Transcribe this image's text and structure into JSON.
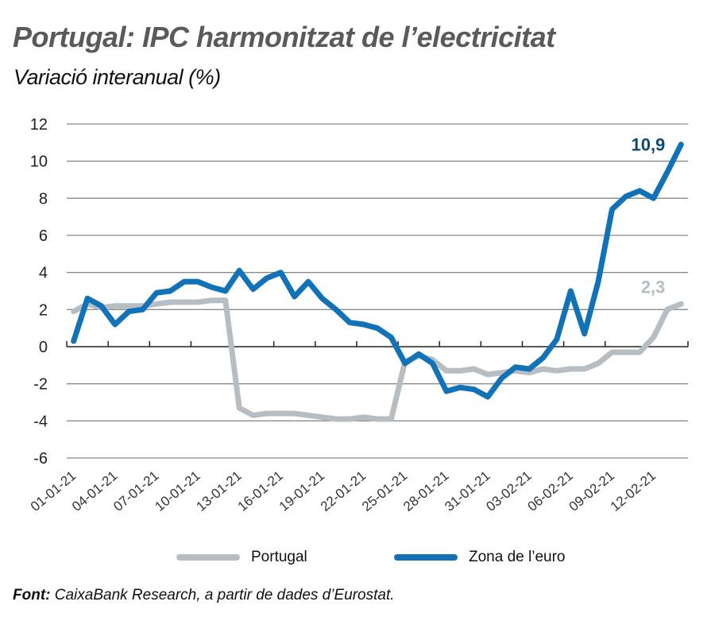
{
  "title": "Portugal: IPC harmonitzat de l’electricitat",
  "subtitle": "Variació interanual (%)",
  "source_label": "Font:",
  "source_text": " CaixaBank Research, a partir de dades d’Eurostat.",
  "colors": {
    "portugal": "#b6bec3",
    "euro": "#1172b8",
    "euro_label": "#0d4a73",
    "grid": "#8a8a8a",
    "axis": "#222222"
  },
  "chart_data": {
    "type": "line",
    "title": "Portugal: IPC harmonitzat de l’electricitat",
    "subtitle": "Variació interanual (%)",
    "xlabel": "",
    "ylabel": "",
    "ylim": [
      -6,
      12
    ],
    "yticks": [
      "12",
      "10",
      "8",
      "6",
      "4",
      "2",
      "0",
      "-2",
      "-4",
      "-6"
    ],
    "ytick_values": [
      12,
      10,
      8,
      6,
      4,
      2,
      0,
      -2,
      -4,
      -6
    ],
    "xtick_labels": [
      "01-01-21",
      "04-01-21",
      "07-01-21",
      "10-01-21",
      "13-01-21",
      "16-01-21",
      "19-01-21",
      "22-01-21",
      "25-01-21",
      "28-01-21",
      "31-01-21",
      "03-02-21",
      "06-02-21",
      "09-02-21",
      "12-02-21"
    ],
    "xtick_step": 3,
    "grid": true,
    "legend_position": "bottom",
    "series": [
      {
        "name": "Portugal",
        "key": "portugal",
        "values": [
          1.9,
          2.3,
          2.1,
          2.2,
          2.2,
          2.2,
          2.3,
          2.4,
          2.4,
          2.4,
          2.5,
          2.5,
          -3.3,
          -3.7,
          -3.6,
          -3.6,
          -3.6,
          -3.7,
          -3.8,
          -3.9,
          -3.9,
          -3.8,
          -3.9,
          -3.9,
          -0.8,
          -0.5,
          -0.7,
          -1.3,
          -1.3,
          -1.2,
          -1.5,
          -1.4,
          -1.3,
          -1.4,
          -1.2,
          -1.3,
          -1.2,
          -1.2,
          -0.9,
          -0.3,
          -0.3,
          -0.3,
          0.5,
          2.0,
          2.3
        ]
      },
      {
        "name": "Zona de l’euro",
        "key": "euro",
        "values": [
          0.3,
          2.6,
          2.2,
          1.2,
          1.9,
          2.0,
          2.9,
          3.0,
          3.5,
          3.5,
          3.2,
          3.0,
          4.1,
          3.1,
          3.7,
          4.0,
          2.7,
          3.5,
          2.6,
          2.0,
          1.3,
          1.2,
          1.0,
          0.5,
          -0.9,
          -0.4,
          -0.9,
          -2.4,
          -2.2,
          -2.3,
          -2.7,
          -1.7,
          -1.1,
          -1.2,
          -0.6,
          0.4,
          3.0,
          0.7,
          3.5,
          7.4,
          8.1,
          8.4,
          8.0,
          9.4,
          10.9
        ]
      }
    ],
    "annotations": [
      {
        "series": "euro",
        "text": "10,9"
      },
      {
        "series": "portugal",
        "text": "2,3"
      }
    ]
  },
  "legend": [
    {
      "label": "Portugal",
      "key": "portugal"
    },
    {
      "label": "Zona de l’euro",
      "key": "euro"
    }
  ]
}
